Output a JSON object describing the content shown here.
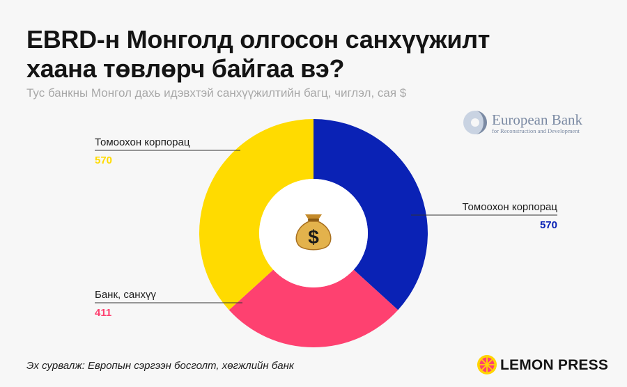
{
  "header": {
    "title": "EBRD-н Монголд олгосон санхүүжилт хаана төвлөрч байгаа вэ?",
    "subtitle": "Тус банкны Монгол дахь идэвхтэй санхүүжилтийн багц, чиглэл, сая $"
  },
  "logos": {
    "ebrd_main": "European Bank",
    "ebrd_sub": "for Reconstruction and Development",
    "publisher": "LEMON PRESS"
  },
  "footer": {
    "source": "Эх сурвалж: Европын сэргээн босголт, хөгжлийн банк"
  },
  "center_icon": "money-bag-icon",
  "chart_data": {
    "type": "pie",
    "donut": true,
    "categories": [
      "Томоохон корпорац",
      "Банк, санхүү",
      "Томоохон корпорац"
    ],
    "values": [
      570,
      411,
      570
    ],
    "value_labels": [
      "570",
      "411",
      "570"
    ],
    "colors": [
      "#0a22b5",
      "#fe4170",
      "#ffdb00"
    ],
    "label_colors": [
      "#0a22b5",
      "#fe4170",
      "#ffdb00"
    ]
  }
}
